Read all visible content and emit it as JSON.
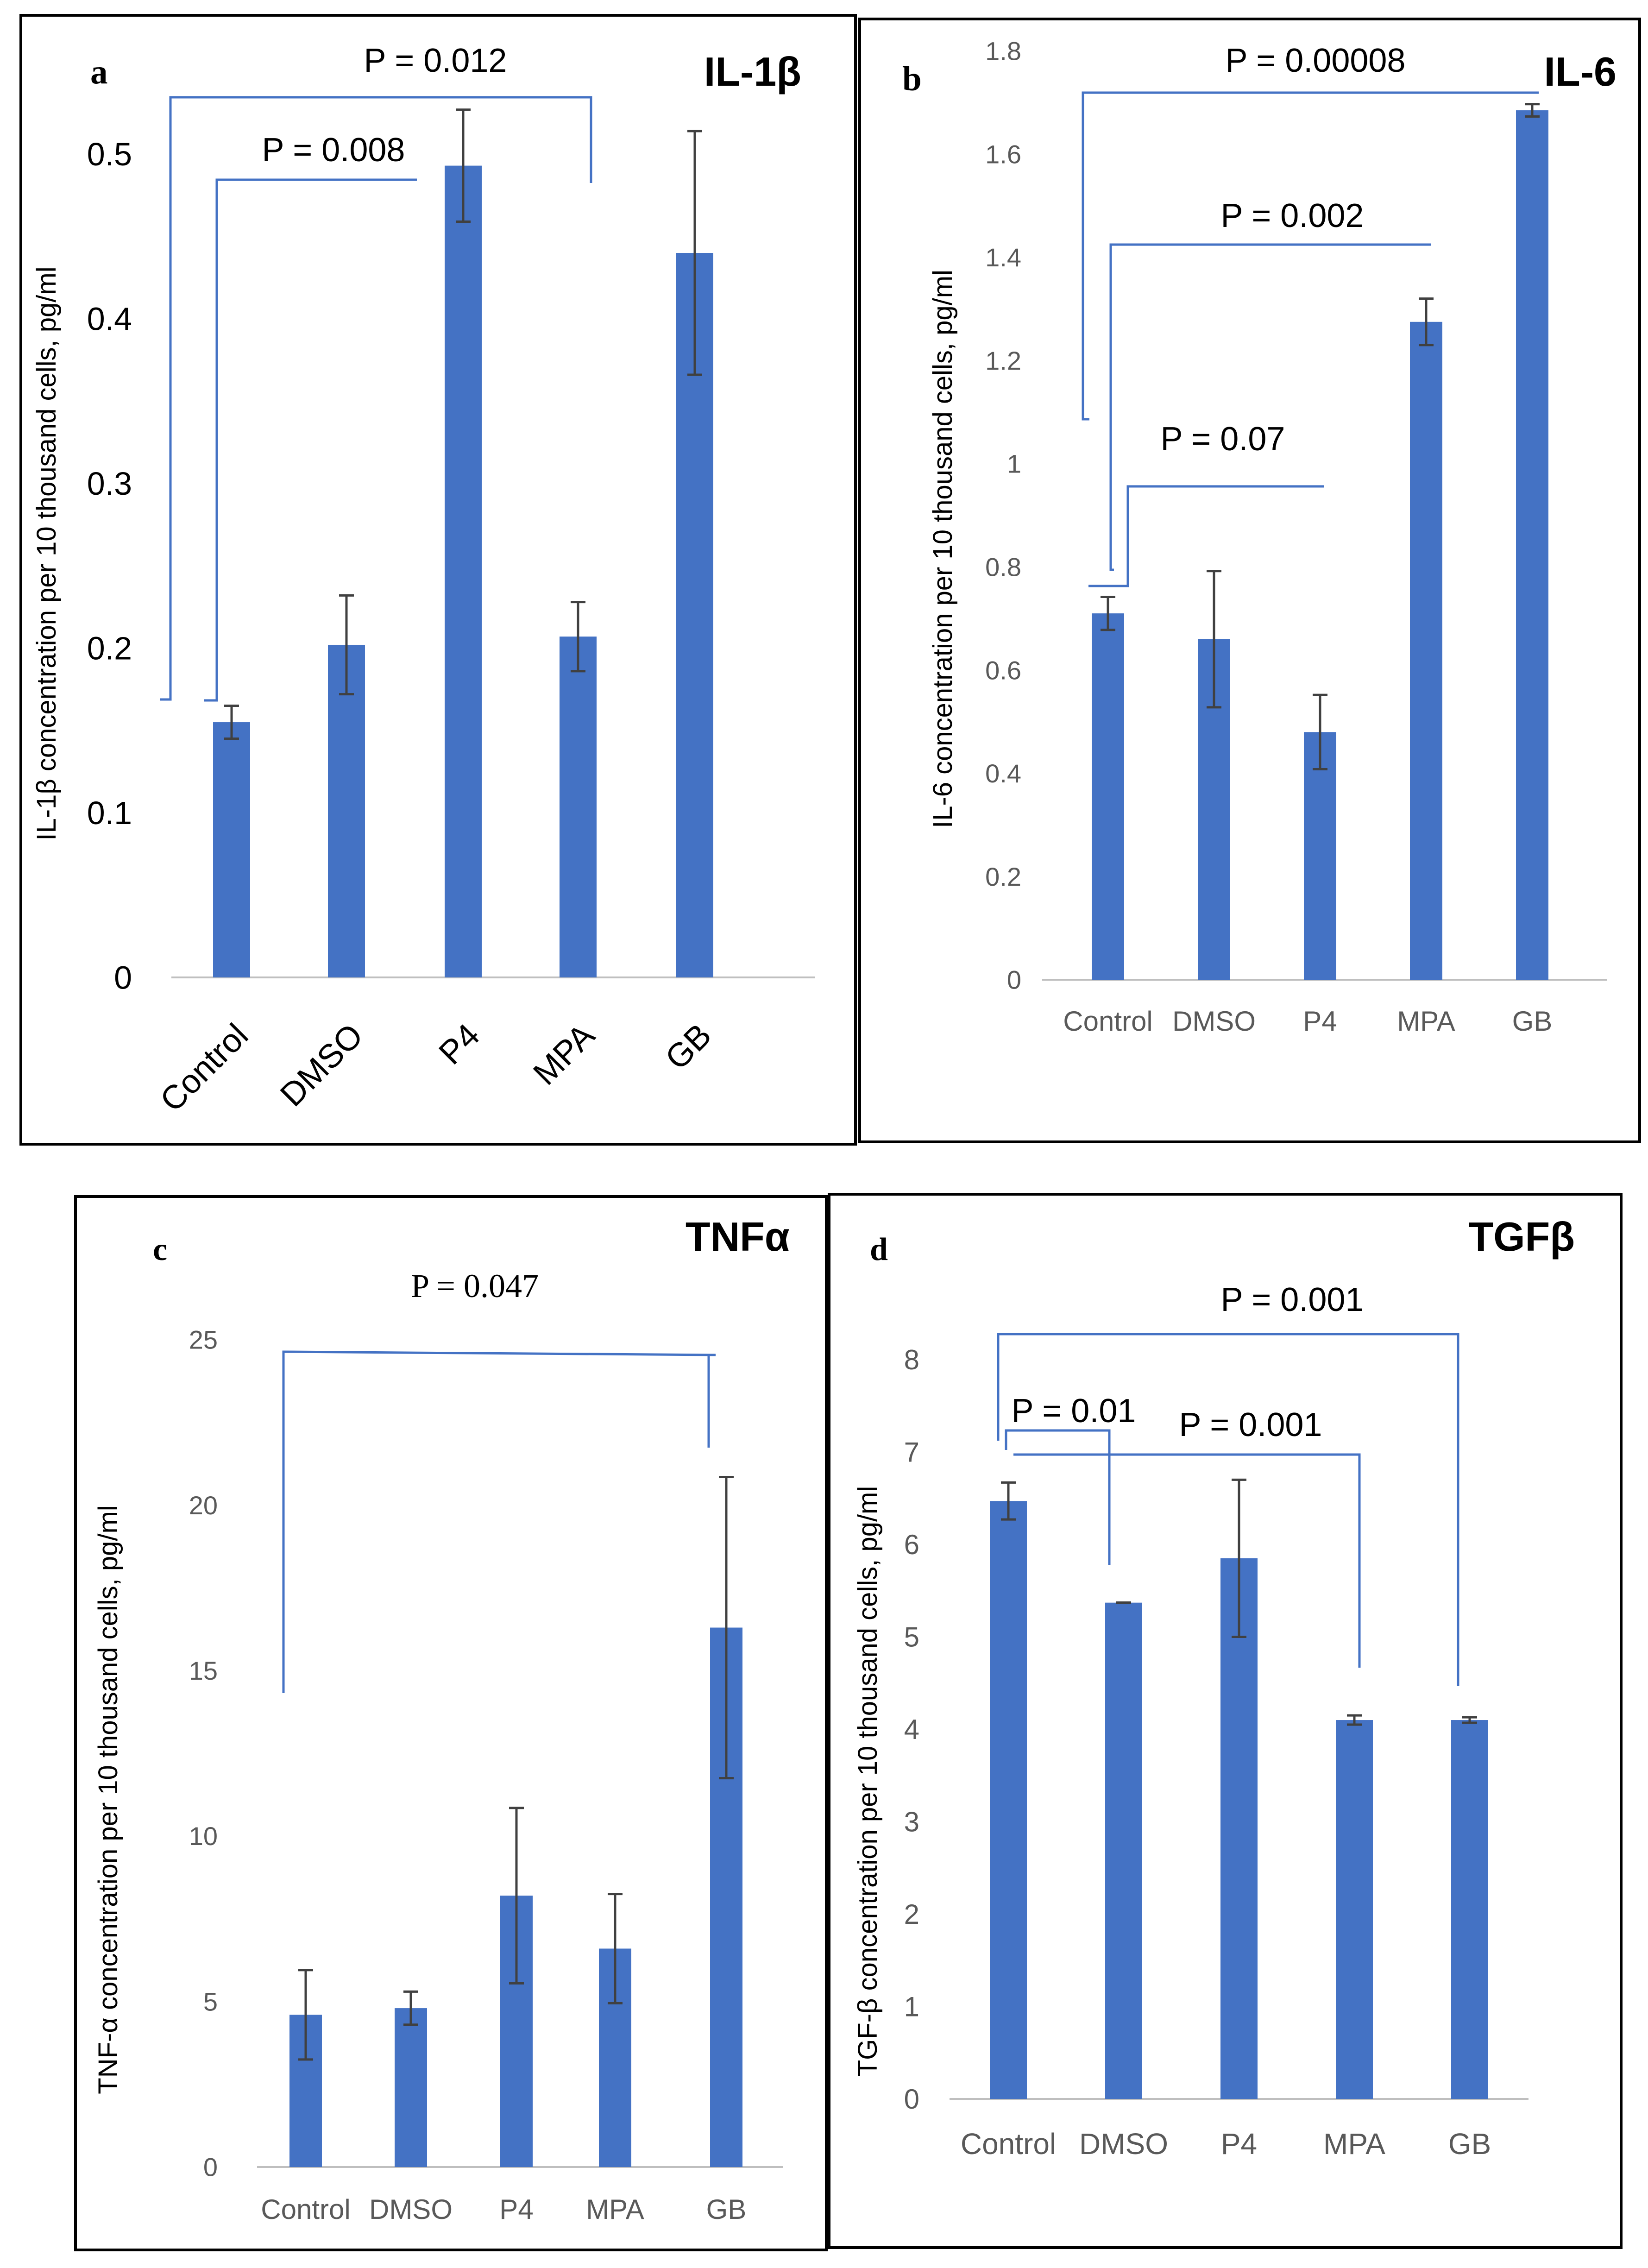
{
  "chart_data": [
    {
      "type": "bar",
      "panel_letter": "a",
      "title": "IL-1β",
      "ylabel": "IL-1β concentration per 10 thousand cells, pg/ml",
      "categories": [
        "Control",
        "DMSO",
        "P4",
        "MPA",
        "GB"
      ],
      "series": [
        {
          "values": [
            0.155,
            0.202,
            0.493,
            0.207,
            0.44
          ],
          "errors": [
            0.01,
            0.03,
            0.034,
            0.021,
            0.074
          ]
        }
      ],
      "yticks": [
        "0",
        "0.1",
        "0.2",
        "0.3",
        "0.4",
        "0.5"
      ],
      "ylim": [
        0,
        0.55
      ],
      "bar_color": "#4472c4",
      "grid": false,
      "annotations": [
        {
          "label": "P = 0.012",
          "from": "Control",
          "to": "MPA"
        },
        {
          "label": "P = 0.008",
          "from": "Control",
          "to": "P4"
        }
      ]
    },
    {
      "type": "bar",
      "panel_letter": "b",
      "title": "IL-6",
      "ylabel": "IL-6 concentration per 10 thousand cells, pg/ml",
      "categories": [
        "Control",
        "DMSO",
        "P4",
        "MPA",
        "GB"
      ],
      "series": [
        {
          "values": [
            0.71,
            0.66,
            0.48,
            1.275,
            1.685
          ],
          "errors": [
            0.032,
            0.132,
            0.072,
            0.045,
            0.012
          ]
        }
      ],
      "yticks": [
        "0",
        "0.2",
        "0.4",
        "0.6",
        "0.8",
        "1",
        "1.2",
        "1.4",
        "1.6",
        "1.8"
      ],
      "ylim": [
        0,
        1.8
      ],
      "bar_color": "#4472c4",
      "grid": false,
      "annotations": [
        {
          "label": "P = 0.00008",
          "from": "Control",
          "to": "GB"
        },
        {
          "label": "P = 0.002",
          "from": "Control",
          "to": "MPA"
        },
        {
          "label": "P = 0.07",
          "from": "Control",
          "to": "P4"
        }
      ]
    },
    {
      "type": "bar",
      "panel_letter": "c",
      "title": "TNFα",
      "ylabel": "TNF-α concentration per 10 thousand cells, pg/ml",
      "categories": [
        "Control",
        "DMSO",
        "P4",
        "MPA",
        "GB"
      ],
      "series": [
        {
          "values": [
            4.6,
            4.8,
            8.2,
            6.6,
            16.3
          ],
          "errors": [
            1.35,
            0.5,
            2.65,
            1.65,
            4.55
          ]
        }
      ],
      "yticks": [
        "0",
        "5",
        "10",
        "15",
        "20",
        "25"
      ],
      "ylim": [
        0,
        25
      ],
      "bar_color": "#4472c4",
      "grid": false,
      "annotations": [
        {
          "label": "P = 0.047",
          "from": "Control",
          "to": "GB"
        }
      ]
    },
    {
      "type": "bar",
      "panel_letter": "d",
      "title": "TGFβ",
      "ylabel": "TGF-β concentration per 10 thousand cells, pg/ml",
      "categories": [
        "Control",
        "DMSO",
        "P4",
        "MPA",
        "GB"
      ],
      "series": [
        {
          "values": [
            6.47,
            5.37,
            5.85,
            4.1,
            4.1
          ],
          "errors": [
            0.2,
            0.0,
            0.85,
            0.05,
            0.03
          ]
        }
      ],
      "yticks": [
        "0",
        "1",
        "2",
        "3",
        "4",
        "5",
        "6",
        "7",
        "8"
      ],
      "ylim": [
        0,
        8
      ],
      "bar_color": "#4472c4",
      "grid": false,
      "annotations": [
        {
          "label": "P = 0.001",
          "from": "Control",
          "to": "GB"
        },
        {
          "label": "P = 0.01",
          "from": "Control",
          "to": "DMSO"
        },
        {
          "label": "P = 0.001",
          "from": "Control",
          "to": "MPA"
        }
      ]
    }
  ]
}
